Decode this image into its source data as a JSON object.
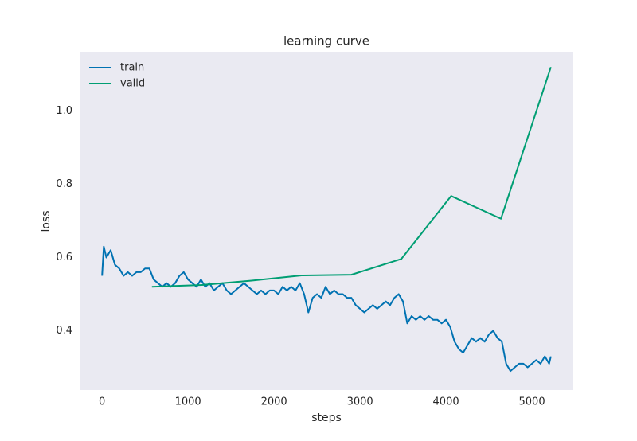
{
  "chart_data": {
    "type": "line",
    "title": "learning curve",
    "x_label": "steps",
    "y_label": "loss",
    "xlim": [
      -261,
      5481
    ],
    "ylim": [
      0.238,
      1.162
    ],
    "xticks": [
      0,
      1000,
      2000,
      3000,
      4000,
      5000
    ],
    "yticks": [
      0.4,
      0.6,
      0.8,
      {
        "value": 1,
        "label": "1.0"
      }
    ],
    "grid": false,
    "legend": "upper left",
    "series": [
      {
        "name": "train",
        "color": "#0072b2",
        "x": [
          0,
          20,
          50,
          100,
          150,
          200,
          250,
          300,
          350,
          400,
          450,
          500,
          550,
          600,
          650,
          700,
          750,
          800,
          850,
          900,
          950,
          1000,
          1050,
          1100,
          1150,
          1200,
          1250,
          1300,
          1350,
          1400,
          1450,
          1500,
          1550,
          1600,
          1650,
          1700,
          1750,
          1800,
          1850,
          1900,
          1950,
          2000,
          2050,
          2100,
          2150,
          2200,
          2250,
          2300,
          2350,
          2400,
          2450,
          2500,
          2550,
          2600,
          2650,
          2700,
          2750,
          2800,
          2850,
          2900,
          2950,
          3000,
          3050,
          3100,
          3150,
          3200,
          3250,
          3300,
          3350,
          3400,
          3450,
          3500,
          3550,
          3600,
          3650,
          3700,
          3750,
          3800,
          3850,
          3900,
          3950,
          4000,
          4050,
          4100,
          4150,
          4200,
          4250,
          4300,
          4350,
          4400,
          4450,
          4500,
          4550,
          4600,
          4650,
          4700,
          4750,
          4800,
          4850,
          4900,
          4950,
          5000,
          5050,
          5100,
          5150,
          5200,
          5220
        ],
        "values": [
          0.55,
          0.63,
          0.6,
          0.62,
          0.58,
          0.57,
          0.55,
          0.56,
          0.55,
          0.56,
          0.56,
          0.57,
          0.57,
          0.54,
          0.53,
          0.52,
          0.53,
          0.52,
          0.53,
          0.55,
          0.56,
          0.54,
          0.53,
          0.52,
          0.54,
          0.52,
          0.53,
          0.51,
          0.52,
          0.53,
          0.51,
          0.5,
          0.51,
          0.52,
          0.53,
          0.52,
          0.51,
          0.5,
          0.51,
          0.5,
          0.51,
          0.51,
          0.5,
          0.52,
          0.51,
          0.52,
          0.51,
          0.53,
          0.5,
          0.45,
          0.49,
          0.5,
          0.49,
          0.52,
          0.5,
          0.51,
          0.5,
          0.5,
          0.49,
          0.49,
          0.47,
          0.46,
          0.45,
          0.46,
          0.47,
          0.46,
          0.47,
          0.48,
          0.47,
          0.49,
          0.5,
          0.48,
          0.42,
          0.44,
          0.43,
          0.44,
          0.43,
          0.44,
          0.43,
          0.43,
          0.42,
          0.43,
          0.41,
          0.37,
          0.35,
          0.34,
          0.36,
          0.38,
          0.37,
          0.38,
          0.37,
          0.39,
          0.4,
          0.38,
          0.37,
          0.31,
          0.29,
          0.3,
          0.31,
          0.31,
          0.3,
          0.31,
          0.32,
          0.31,
          0.33,
          0.31,
          0.33
        ]
      },
      {
        "name": "valid",
        "color": "#009e73",
        "x": [
          580,
          1160,
          1740,
          2320,
          2900,
          3480,
          4060,
          4640,
          5220
        ],
        "values": [
          0.52,
          0.525,
          0.537,
          0.551,
          0.553,
          0.596,
          0.768,
          0.706,
          1.12
        ]
      }
    ]
  }
}
